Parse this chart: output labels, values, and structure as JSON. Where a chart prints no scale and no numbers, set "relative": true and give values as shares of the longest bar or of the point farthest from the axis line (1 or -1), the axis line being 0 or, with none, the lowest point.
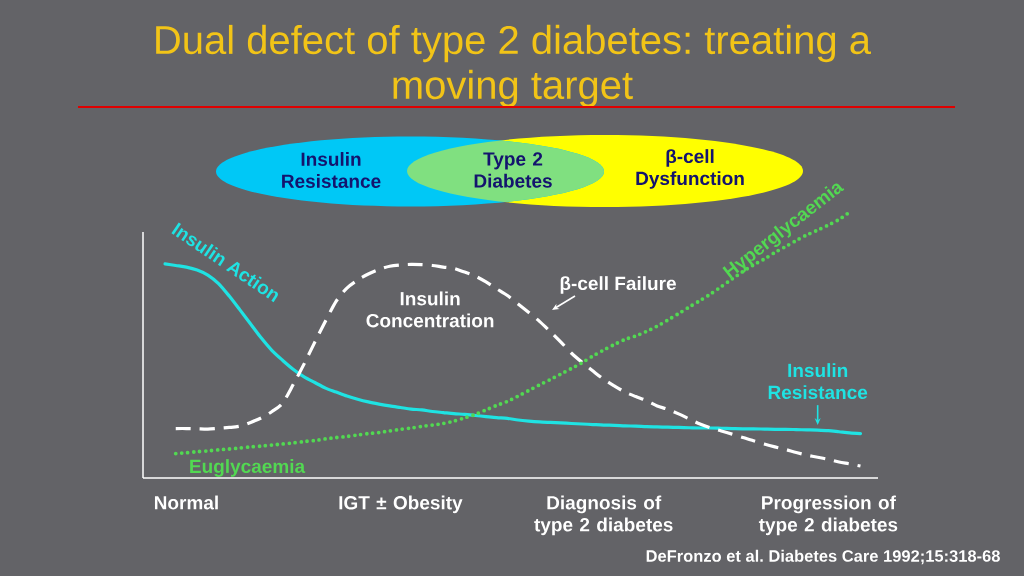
{
  "chart_data": {
    "type": "line",
    "title": "Dual defect of type 2 diabetes: treating a moving target",
    "relative": true,
    "categories": [
      null,
      null,
      "Normal",
      null,
      null,
      null,
      null,
      null,
      null,
      null,
      null,
      null,
      null,
      null,
      null,
      null,
      null,
      null,
      null,
      null,
      null,
      null,
      "IGT ± Obesity",
      null,
      null,
      null,
      null,
      null,
      null,
      null,
      null,
      null,
      null,
      null,
      null,
      null,
      null,
      null,
      null,
      null,
      null,
      "Diagnosis of type 2 diabetes",
      null,
      null,
      null,
      null,
      null,
      null,
      null,
      null,
      null,
      null,
      null,
      null,
      null,
      null,
      null,
      null,
      null,
      null,
      null,
      null,
      "Progression of type 2 diabetes",
      null,
      null,
      null
    ],
    "series": [
      {
        "name": "Insulin Action",
        "color": "#1fe3e3",
        "line_style": "solid",
        "values": [
          0.805,
          0.799,
          0.793,
          0.782,
          0.763,
          0.731,
          0.684,
          0.632,
          0.579,
          0.526,
          0.479,
          0.442,
          0.408,
          0.38,
          0.359,
          0.338,
          0.323,
          0.308,
          0.296,
          0.286,
          0.278,
          0.271,
          0.265,
          0.259,
          0.256,
          0.25,
          0.246,
          0.242,
          0.239,
          0.235,
          0.231,
          0.227,
          0.224,
          0.218,
          0.214,
          0.211,
          0.209,
          0.207,
          0.205,
          0.203,
          0.201,
          0.199,
          0.198,
          0.196,
          0.195,
          0.193,
          0.192,
          0.191,
          0.19,
          0.189,
          0.188,
          0.188,
          0.187,
          0.186,
          0.185,
          0.185,
          0.184,
          0.183,
          0.183,
          0.182,
          0.181,
          0.18,
          0.178,
          0.174,
          0.17,
          0.167
        ]
      },
      {
        "name": "Insulin Concentration",
        "color": "#ffffff",
        "line_style": "dashed",
        "values": [
          null,
          0.186,
          0.186,
          0.185,
          0.184,
          0.187,
          0.19,
          0.195,
          0.209,
          0.226,
          0.25,
          0.282,
          0.353,
          0.429,
          0.511,
          0.59,
          0.665,
          0.714,
          0.744,
          0.767,
          0.784,
          0.796,
          0.801,
          0.803,
          0.802,
          0.799,
          0.793,
          0.788,
          0.774,
          0.759,
          0.737,
          0.711,
          0.686,
          0.654,
          0.622,
          0.589,
          0.551,
          0.511,
          0.469,
          0.434,
          0.402,
          0.371,
          0.346,
          0.323,
          0.306,
          0.291,
          0.271,
          0.258,
          0.241,
          0.222,
          0.203,
          0.188,
          0.177,
          0.165,
          0.152,
          0.14,
          0.128,
          0.117,
          0.107,
          0.096,
          0.086,
          0.078,
          0.07,
          0.06,
          0.053,
          0.045
        ]
      },
      {
        "color": "#52d852",
        "line_style": "dotted",
        "values": [
          null,
          0.092,
          0.095,
          0.099,
          0.102,
          0.106,
          0.109,
          0.113,
          0.117,
          0.12,
          0.124,
          0.128,
          0.132,
          0.137,
          0.141,
          0.147,
          0.152,
          0.156,
          0.162,
          0.167,
          0.171,
          0.177,
          0.183,
          0.188,
          0.194,
          0.199,
          0.205,
          0.214,
          0.226,
          0.239,
          0.256,
          0.273,
          0.288,
          0.308,
          0.329,
          0.35,
          0.37,
          0.391,
          0.412,
          0.434,
          0.459,
          0.481,
          0.502,
          0.521,
          0.534,
          0.551,
          0.571,
          0.594,
          0.618,
          0.643,
          0.667,
          0.692,
          0.72,
          0.748,
          0.776,
          0.801,
          0.823,
          0.848,
          0.87,
          0.893,
          0.914,
          0.932,
          0.951,
          0.972,
          1.0,
          null
        ]
      }
    ],
    "annotations": [
      "Insulin Resistance",
      "Type 2 Diabetes",
      "β-cell Dysfunction",
      "β-cell Failure",
      {
        "text": "Insulin Resistance",
        "y": 0.18
      },
      "Euglycaemia",
      {
        "text": "Hyperglycaemia",
        "y": 0.848
      },
      "DeFronzo et al. Diabetes Care 1992;15:318-68"
    ]
  }
}
